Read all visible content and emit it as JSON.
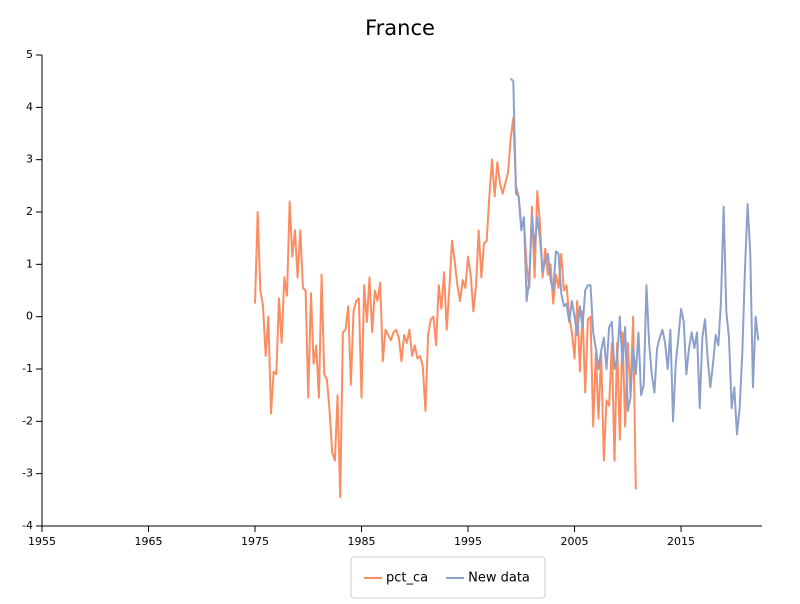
{
  "chart_data": {
    "type": "line",
    "title": "France",
    "xlim": [
      1955,
      2022.6
    ],
    "xticks": [
      1955,
      1965,
      1975,
      1985,
      1995,
      2005,
      2015
    ],
    "ylim": [
      -4,
      5
    ],
    "yticks": [
      -4,
      -3,
      -2,
      -1,
      0,
      1,
      2,
      3,
      4,
      5
    ],
    "legend": "bottom",
    "series": [
      {
        "name": "pct_ca",
        "color": "#fc8d62",
        "x": [
          1975,
          1975.25,
          1975.5,
          1975.75,
          1976,
          1976.25,
          1976.5,
          1976.75,
          1977,
          1977.25,
          1977.5,
          1977.75,
          1978,
          1978.25,
          1978.5,
          1978.75,
          1979,
          1979.25,
          1979.5,
          1979.75,
          1980,
          1980.25,
          1980.5,
          1980.75,
          1981,
          1981.25,
          1981.5,
          1981.75,
          1982,
          1982.25,
          1982.5,
          1982.75,
          1983,
          1983.25,
          1983.5,
          1983.75,
          1984,
          1984.25,
          1984.5,
          1984.75,
          1985,
          1985.25,
          1985.5,
          1985.75,
          1986,
          1986.25,
          1986.5,
          1986.75,
          1987,
          1987.25,
          1987.5,
          1987.75,
          1988,
          1988.25,
          1988.5,
          1988.75,
          1989,
          1989.25,
          1989.5,
          1989.75,
          1990,
          1990.25,
          1990.5,
          1990.75,
          1991,
          1991.25,
          1991.5,
          1991.75,
          1992,
          1992.25,
          1992.5,
          1992.75,
          1993,
          1993.25,
          1993.5,
          1993.75,
          1994,
          1994.25,
          1994.5,
          1994.75,
          1995,
          1995.25,
          1995.5,
          1995.75,
          1996,
          1996.25,
          1996.5,
          1996.75,
          1997,
          1997.25,
          1997.5,
          1997.75,
          1998,
          1998.25,
          1998.5,
          1998.75,
          1999,
          1999.25,
          1999.5,
          1999.75,
          2000,
          2000.25,
          2000.5,
          2000.75,
          2001,
          2001.25,
          2001.5,
          2001.75,
          2002,
          2002.25,
          2002.5,
          2002.75,
          2003,
          2003.25,
          2003.5,
          2003.75,
          2004,
          2004.25,
          2004.5,
          2004.75,
          2005,
          2005.25,
          2005.5,
          2005.75,
          2006,
          2006.25,
          2006.5,
          2006.75,
          2007,
          2007.25,
          2007.5,
          2007.75,
          2008,
          2008.25,
          2008.5,
          2008.75,
          2009,
          2009.25,
          2009.5,
          2009.75,
          2010,
          2010.25,
          2010.5,
          2010.75
        ],
        "values": [
          0.25,
          2.0,
          0.5,
          0.2,
          -0.75,
          0.0,
          -1.85,
          -1.05,
          -1.1,
          0.35,
          -0.5,
          0.75,
          0.4,
          2.2,
          1.15,
          1.65,
          0.75,
          1.65,
          0.55,
          0.5,
          -1.55,
          0.45,
          -0.9,
          -0.55,
          -1.55,
          0.8,
          -1.1,
          -1.2,
          -1.8,
          -2.6,
          -2.75,
          -1.5,
          -3.45,
          -0.3,
          -0.25,
          0.2,
          -1.3,
          0.1,
          0.3,
          0.35,
          -1.55,
          0.6,
          -0.1,
          0.75,
          -0.3,
          0.5,
          0.3,
          0.65,
          -0.85,
          -0.25,
          -0.35,
          -0.45,
          -0.3,
          -0.25,
          -0.4,
          -0.85,
          -0.35,
          -0.5,
          -0.25,
          -0.75,
          -0.55,
          -0.8,
          -0.75,
          -0.95,
          -1.8,
          -0.35,
          -0.05,
          0.0,
          -0.55,
          0.6,
          0.15,
          0.85,
          -0.25,
          0.55,
          1.45,
          1.05,
          0.6,
          0.3,
          0.7,
          0.55,
          1.15,
          0.8,
          0.1,
          0.6,
          1.65,
          0.75,
          1.4,
          1.45,
          2.3,
          3.0,
          2.3,
          2.95,
          2.55,
          2.35,
          2.55,
          2.75,
          3.4,
          3.8,
          2.5,
          2.3,
          1.75,
          1.8,
          1.0,
          0.55,
          2.1,
          0.75,
          2.4,
          1.8,
          0.75,
          1.3,
          0.8,
          1.0,
          0.25,
          0.8,
          0.55,
          1.2,
          0.5,
          0.6,
          0.0,
          -0.3,
          -0.8,
          0.3,
          -1.05,
          0.1,
          -1.45,
          -0.05,
          0.0,
          -2.1,
          -0.7,
          -1.95,
          -0.7,
          -2.75,
          -1.6,
          -1.7,
          -0.5,
          -2.75,
          -0.5,
          -2.35,
          -0.3,
          -2.1,
          -0.5,
          -1.5,
          0.0,
          -3.3
        ]
      },
      {
        "name": "New data",
        "color": "#8da0cb",
        "x": [
          1999,
          1999.25,
          1999.5,
          1999.75,
          2000,
          2000.25,
          2000.5,
          2000.75,
          2001,
          2001.25,
          2001.5,
          2001.75,
          2002,
          2002.25,
          2002.5,
          2002.75,
          2003,
          2003.25,
          2003.5,
          2003.75,
          2004,
          2004.25,
          2004.5,
          2004.75,
          2005,
          2005.25,
          2005.5,
          2005.75,
          2006,
          2006.25,
          2006.5,
          2006.75,
          2007,
          2007.25,
          2007.5,
          2007.75,
          2008,
          2008.25,
          2008.5,
          2008.75,
          2009,
          2009.25,
          2009.5,
          2009.75,
          2010,
          2010.25,
          2010.5,
          2010.75,
          2011,
          2011.25,
          2011.5,
          2011.75,
          2012,
          2012.25,
          2012.5,
          2012.75,
          2013,
          2013.25,
          2013.5,
          2013.75,
          2014,
          2014.25,
          2014.5,
          2014.75,
          2015,
          2015.25,
          2015.5,
          2015.75,
          2016,
          2016.25,
          2016.5,
          2016.75,
          2017,
          2017.25,
          2017.5,
          2017.75,
          2018,
          2018.25,
          2018.5,
          2018.75,
          2019,
          2019.25,
          2019.5,
          2019.75,
          2020,
          2020.25,
          2020.5,
          2020.75,
          2021,
          2021.25,
          2021.5,
          2021.75,
          2022,
          2022.25
        ],
        "values": [
          4.55,
          4.5,
          2.35,
          2.3,
          1.65,
          1.9,
          0.3,
          0.7,
          1.95,
          1.3,
          1.9,
          1.5,
          0.85,
          1.05,
          1.2,
          0.7,
          0.5,
          1.25,
          1.2,
          0.45,
          0.2,
          0.25,
          -0.1,
          0.3,
          0.0,
          -0.35,
          0.2,
          -0.2,
          0.5,
          0.6,
          0.6,
          -0.3,
          -0.6,
          -1.0,
          -0.65,
          -0.4,
          -1.0,
          -0.2,
          -0.1,
          -1.0,
          -0.8,
          0.0,
          -0.9,
          -0.2,
          -1.8,
          -1.55,
          -0.6,
          -1.1,
          -0.3,
          -1.5,
          -1.3,
          0.6,
          -0.5,
          -1.1,
          -1.45,
          -0.6,
          -0.4,
          -0.25,
          -0.5,
          -1.0,
          -0.25,
          -2.0,
          -0.9,
          -0.4,
          0.15,
          -0.1,
          -1.1,
          -0.6,
          -0.3,
          -0.6,
          -0.3,
          -1.75,
          -0.4,
          -0.05,
          -0.8,
          -1.35,
          -0.9,
          -0.35,
          -0.55,
          0.3,
          2.1,
          0.1,
          -0.4,
          -1.75,
          -1.35,
          -2.25,
          -1.75,
          -0.7,
          0.9,
          2.15,
          1.2,
          -1.35,
          0.0,
          -0.45
        ]
      }
    ]
  }
}
